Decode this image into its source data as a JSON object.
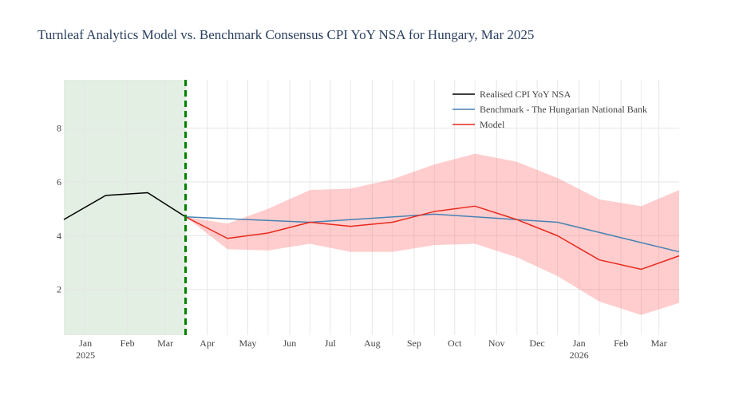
{
  "title": "Turnleaf Analytics Model vs. Benchmark Consensus CPI YoY NSA for Hungary, Mar 2025",
  "chart_data": {
    "type": "line",
    "x_tick_labels": [
      {
        "date": "2025-01-01",
        "month": "Jan",
        "year": "2025"
      },
      {
        "date": "2025-02-01",
        "month": "Feb",
        "year": ""
      },
      {
        "date": "2025-03-01",
        "month": "Mar",
        "year": ""
      },
      {
        "date": "2025-04-01",
        "month": "Apr",
        "year": ""
      },
      {
        "date": "2025-05-01",
        "month": "May",
        "year": ""
      },
      {
        "date": "2025-06-01",
        "month": "Jun",
        "year": ""
      },
      {
        "date": "2025-07-01",
        "month": "Jul",
        "year": ""
      },
      {
        "date": "2025-08-01",
        "month": "Aug",
        "year": ""
      },
      {
        "date": "2025-09-01",
        "month": "Sep",
        "year": ""
      },
      {
        "date": "2025-10-01",
        "month": "Oct",
        "year": ""
      },
      {
        "date": "2025-11-01",
        "month": "Nov",
        "year": ""
      },
      {
        "date": "2025-12-01",
        "month": "Dec",
        "year": ""
      },
      {
        "date": "2026-01-01",
        "month": "Jan",
        "year": "2026"
      },
      {
        "date": "2026-02-01",
        "month": "Feb",
        "year": ""
      },
      {
        "date": "2026-03-01",
        "month": "Mar",
        "year": ""
      }
    ],
    "x_range": [
      "2024-12-16",
      "2026-03-16"
    ],
    "y_ticks": [
      2,
      4,
      6,
      8
    ],
    "ylim": [
      0.3,
      9.8
    ],
    "grid": true,
    "legend_position": "top-right",
    "shaded_region": {
      "from": "2024-12-16",
      "to": "2025-03-16",
      "color": "#e2efe2"
    },
    "forecast_start_line": {
      "date": "2025-03-16",
      "color": "#008000",
      "style": "dashed"
    },
    "series": [
      {
        "name": "Realised CPI YoY NSA",
        "color": "#000000",
        "x": [
          "2024-12-16",
          "2025-01-16",
          "2025-02-16",
          "2025-03-16"
        ],
        "y": [
          4.6,
          5.5,
          5.6,
          4.7
        ]
      },
      {
        "name": "Benchmark - The Hungarian National Bank",
        "color": "#4682b4",
        "x": [
          "2025-03-16",
          "2025-06-16",
          "2025-09-16",
          "2025-12-16",
          "2026-03-16"
        ],
        "y": [
          4.7,
          4.5,
          4.8,
          4.5,
          3.4
        ]
      },
      {
        "name": "Model",
        "color": "#e8291c",
        "x": [
          "2025-03-16",
          "2025-04-16",
          "2025-05-16",
          "2025-06-16",
          "2025-07-16",
          "2025-08-16",
          "2025-09-16",
          "2025-10-16",
          "2025-11-16",
          "2025-12-16",
          "2026-01-16",
          "2026-02-16",
          "2026-03-16"
        ],
        "y": [
          4.7,
          3.9,
          4.1,
          4.5,
          4.35,
          4.5,
          4.9,
          5.1,
          4.6,
          4.0,
          3.1,
          2.75,
          3.25
        ],
        "band": {
          "color": "rgba(255,99,99,0.32)",
          "upper": [
            4.7,
            4.45,
            5.0,
            5.7,
            5.75,
            6.1,
            6.65,
            7.05,
            6.75,
            6.15,
            5.35,
            5.1,
            5.7
          ],
          "lower": [
            4.7,
            3.5,
            3.45,
            3.7,
            3.4,
            3.4,
            3.65,
            3.7,
            3.2,
            2.5,
            1.55,
            1.05,
            1.5
          ]
        }
      }
    ]
  }
}
